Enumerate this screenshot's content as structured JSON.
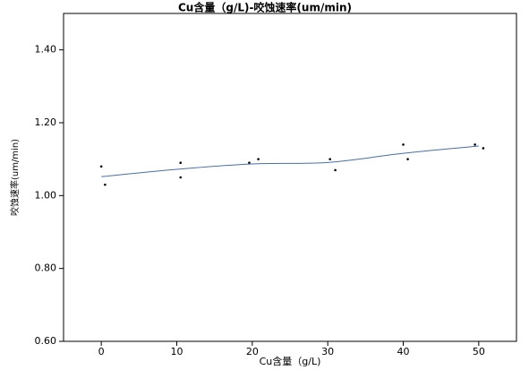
{
  "chart_data": {
    "type": "scatter",
    "title": "Cu含量（g/L)-咬蚀速率(um/min)",
    "x_label": "Cu含量（g/L)",
    "y_label": "咬蚀速率(um/min)",
    "xlim": [
      -5,
      55
    ],
    "xticks": [
      0,
      10,
      20,
      30,
      40,
      50
    ],
    "ylim": [
      0.6,
      1.5
    ],
    "yticks": [
      {
        "value": 0.6,
        "label": "0.60"
      },
      {
        "value": 0.8,
        "label": "0.80"
      },
      {
        "value": 1.0,
        "label": "1.00"
      },
      {
        "value": 1.2,
        "label": "1.20"
      },
      {
        "value": 1.4,
        "label": "1.40"
      }
    ],
    "series": [
      {
        "type": "scatter",
        "color": "#000000",
        "x": [
          0,
          0.5,
          10.5,
          10.5,
          19.6,
          20.8,
          30.3,
          31,
          40,
          40.6,
          49.5,
          50.6
        ],
        "values": [
          1.08,
          1.03,
          1.09,
          1.05,
          1.09,
          1.1,
          1.1,
          1.07,
          1.14,
          1.1,
          1.14,
          1.13
        ]
      },
      {
        "type": "line",
        "color": "#4a6fa5",
        "x": [
          0,
          10,
          20,
          30,
          40,
          50
        ],
        "values": [
          1.052,
          1.072,
          1.087,
          1.091,
          1.116,
          1.136
        ]
      }
    ]
  }
}
